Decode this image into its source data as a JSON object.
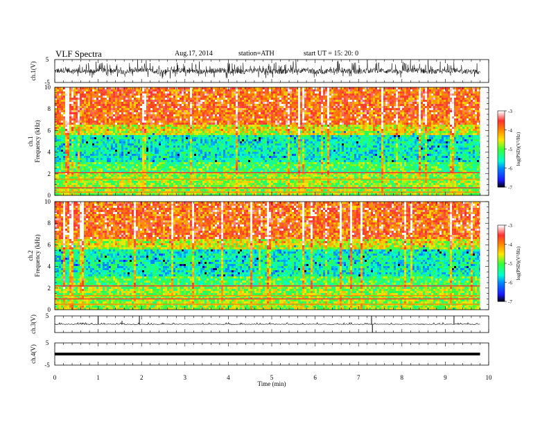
{
  "header": {
    "title": "VLF  Spectra",
    "date": "Aug.17, 2014",
    "station": "station=ATH",
    "start": "start  UT =   15: 20: 0"
  },
  "colorbar": {
    "label": "log(PSD)(V²/Hz)",
    "ticks": [
      "-3",
      "-4",
      "-5",
      "-6",
      "-7"
    ],
    "colors": [
      "#ffffff",
      "#ff3030",
      "#ff8a00",
      "#ffe600",
      "#39ff39",
      "#00ffd0",
      "#0088ff",
      "#1a1aff",
      "#000000"
    ]
  },
  "chart_data": [
    {
      "type": "line",
      "name": "ch1-waveform",
      "ylabel": "ch.1(V)",
      "yticks": [
        "5",
        "-5"
      ],
      "ylim": [
        -5,
        5
      ],
      "xlim": [
        0,
        10
      ],
      "description_values": {
        "baseline": 0,
        "amplitude_typical": 1.5,
        "amplitude_peak": 5
      }
    },
    {
      "type": "heatmap",
      "name": "ch1-spectrogram",
      "ylabel": "ch.1\nFrequency (kHz)",
      "ylim": [
        0,
        10
      ],
      "xlim": [
        0,
        10
      ],
      "yticks": [
        "0",
        "2",
        "4",
        "6",
        "8",
        "10"
      ],
      "bands": [
        {
          "freq_range_khz": [
            6,
            10
          ],
          "log_psd": -3.5
        },
        {
          "freq_range_khz": [
            2.5,
            6
          ],
          "log_psd": -5.5
        },
        {
          "freq_range_khz": [
            1,
            2.5
          ],
          "log_psd": -5
        },
        {
          "freq_range_khz": [
            0,
            1
          ],
          "log_psd": -4.5
        }
      ],
      "line_freqs_khz": [
        0.3,
        0.7,
        1.5,
        2.1
      ]
    },
    {
      "type": "heatmap",
      "name": "ch2-spectrogram",
      "ylabel": "ch.2\nFrequency (kHz)",
      "ylim": [
        0,
        10
      ],
      "xlim": [
        0,
        10
      ],
      "yticks": [
        "0",
        "2",
        "4",
        "6",
        "8",
        "10"
      ],
      "bands": [
        {
          "freq_range_khz": [
            6,
            10
          ],
          "log_psd": -3.5
        },
        {
          "freq_range_khz": [
            2.5,
            6
          ],
          "log_psd": -5.5
        },
        {
          "freq_range_khz": [
            1,
            2.5
          ],
          "log_psd": -5
        },
        {
          "freq_range_khz": [
            0,
            1
          ],
          "log_psd": -4.5
        }
      ],
      "line_freqs_khz": [
        0.5,
        1.0,
        1.3,
        2.2
      ]
    },
    {
      "type": "line",
      "name": "ch3-waveform",
      "ylabel": "ch.3(V)",
      "yticks": [
        "5",
        "-5"
      ],
      "ylim": [
        -5,
        5
      ],
      "xlim": [
        0,
        10
      ],
      "spikes": [
        {
          "t": 1.0,
          "v": 5
        },
        {
          "t": 1.55,
          "v": 2
        },
        {
          "t": 1.95,
          "v": 5
        },
        {
          "t": 7.3,
          "v": 5
        },
        {
          "t": 7.32,
          "v": -5
        },
        {
          "t": 9.2,
          "v": 5
        }
      ]
    },
    {
      "type": "line",
      "name": "ch4-waveform",
      "ylabel": "ch.4(V)",
      "yticks": [
        "5",
        "-5"
      ],
      "ylim": [
        -5,
        5
      ],
      "xlim": [
        0,
        10
      ],
      "level": 0
    }
  ],
  "xaxis": {
    "label": "Time  (min)",
    "ticks": [
      "0",
      "1",
      "2",
      "3",
      "4",
      "5",
      "6",
      "7",
      "8",
      "9",
      "10"
    ],
    "data_end_min": 9.8
  }
}
